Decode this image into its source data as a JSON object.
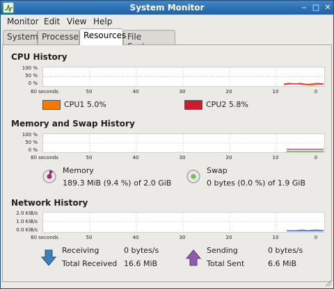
{
  "window": {
    "title": "System Monitor"
  },
  "menu": [
    {
      "label": "Monitor"
    },
    {
      "label": "Edit"
    },
    {
      "label": "View"
    },
    {
      "label": "Help"
    }
  ],
  "tabs": [
    {
      "label": "System"
    },
    {
      "label": "Processes"
    },
    {
      "label": "Resources"
    },
    {
      "label": "File Systems"
    }
  ],
  "cpu": {
    "title": "CPU History",
    "y_ticks": [
      "100 %",
      "50 %",
      "0 %"
    ],
    "x_ticks": [
      "60 seconds",
      "50",
      "40",
      "30",
      "20",
      "10",
      "0"
    ],
    "legend": [
      {
        "label": "CPU1",
        "value": "5.0%",
        "color": "#f57900"
      },
      {
        "label": "CPU2",
        "value": "5.8%",
        "color": "#d1192e"
      }
    ]
  },
  "memory": {
    "title": "Memory and Swap History",
    "y_ticks": [
      "100 %",
      "50 %",
      "0 %"
    ],
    "x_ticks": [
      "60 seconds",
      "50",
      "40",
      "30",
      "20",
      "10",
      "0"
    ],
    "memory_label": "Memory",
    "memory_value": "189.3 MiB (9.4 %) of 2.0 GiB",
    "memory_color": "#a8266a",
    "swap_label": "Swap",
    "swap_value": "0 bytes (0.0 %) of 1.9 GiB",
    "swap_color": "#4e9a06"
  },
  "network": {
    "title": "Network History",
    "y_ticks": [
      "2.0 KiB/s",
      "1.0 KiB/s",
      "0.0 KiB/s"
    ],
    "x_ticks": [
      "60 seconds",
      "50",
      "40",
      "30",
      "20",
      "10",
      "0"
    ],
    "receiving_label": "Receiving",
    "receiving_value": "0 bytes/s",
    "total_received_label": "Total Received",
    "total_received_value": "16.6 MiB",
    "sending_label": "Sending",
    "sending_value": "0 bytes/s",
    "total_sent_label": "Total Sent",
    "total_sent_value": "6.6 MiB",
    "receiving_color": "#3d7fbd",
    "sending_color": "#8e5bb0"
  }
}
